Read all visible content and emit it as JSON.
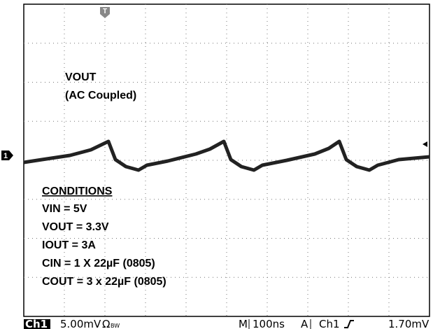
{
  "annotations": {
    "signal": "VOUT",
    "coupling": "(AC Coupled)"
  },
  "conditions": {
    "heading": "CONDITIONS",
    "lines": [
      "VIN = 5V",
      "VOUT = 3.3V",
      "IOUT = 3A",
      "CIN = 1 X 22µF (0805)",
      "COUT = 3 x 22µF (0805)"
    ]
  },
  "markers": {
    "trigger": "T",
    "channel": "1"
  },
  "status_bar": {
    "channel": "Ch1",
    "scale": "5.00mV",
    "coupling_symbol": "Ω",
    "bandwidth": "BW",
    "timebase_prefix": "M",
    "timebase": "100ns",
    "acquire": "A",
    "trigger_channel": "Ch1",
    "trigger_level": "1.70mV"
  }
}
